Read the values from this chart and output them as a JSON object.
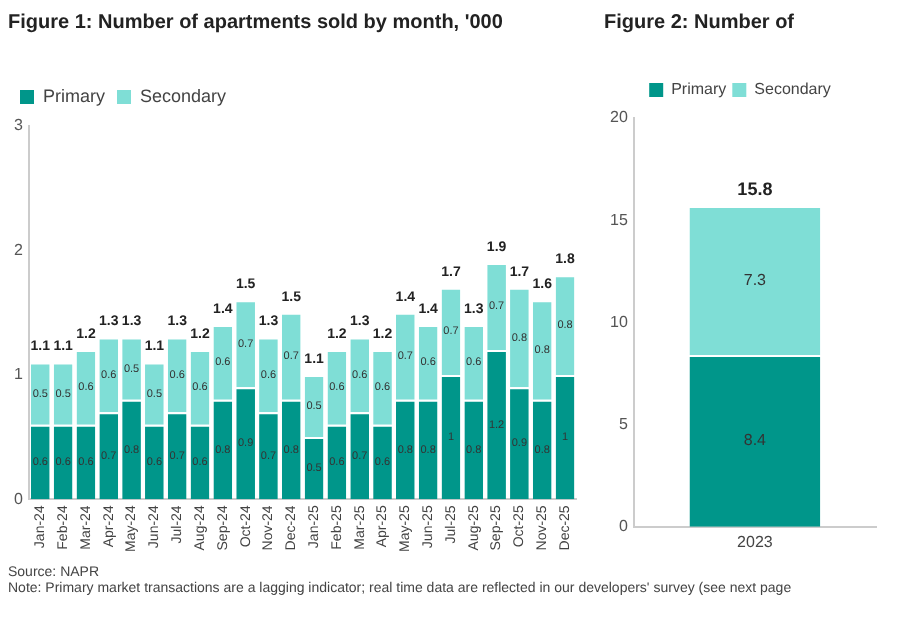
{
  "chart_data": [
    {
      "type": "bar",
      "title": "Figure 1: Number of apartments sold by month, '000",
      "categories": [
        "Jan-24",
        "Feb-24",
        "Mar-24",
        "Apr-24",
        "May-24",
        "Jun-24",
        "Jul-24",
        "Aug-24",
        "Sep-24",
        "Oct-24",
        "Nov-24",
        "Dec-24",
        "Jan-25",
        "Feb-25",
        "Mar-25",
        "Apr-25",
        "May-25",
        "Jun-25",
        "Jul-25",
        "Aug-25",
        "Sep-25",
        "Oct-25",
        "Nov-25",
        "Dec-25"
      ],
      "series": [
        {
          "name": "Primary",
          "color": "#00968a",
          "values": [
            0.6,
            0.6,
            0.6,
            0.7,
            0.8,
            0.6,
            0.7,
            0.6,
            0.8,
            0.9,
            0.7,
            0.8,
            0.5,
            0.6,
            0.7,
            0.6,
            0.8,
            0.8,
            1.0,
            0.8,
            1.2,
            0.9,
            0.8,
            1.0
          ]
        },
        {
          "name": "Secondary",
          "color": "#7fded6",
          "values": [
            0.5,
            0.5,
            0.6,
            0.6,
            0.5,
            0.5,
            0.6,
            0.6,
            0.6,
            0.7,
            0.6,
            0.7,
            0.5,
            0.6,
            0.6,
            0.6,
            0.7,
            0.6,
            0.7,
            0.6,
            0.7,
            0.8,
            0.8,
            0.8
          ]
        }
      ],
      "stacked": true,
      "data_labels": true,
      "totals": [
        "1.1",
        "1.1",
        "1.2",
        "1.3",
        "1.3",
        "1.1",
        "1.3",
        "1.2",
        "1.4",
        "1.5",
        "1.3",
        "1.5",
        "1.1",
        "1.2",
        "1.3",
        "1.2",
        "1.4",
        "1.4",
        "1.7",
        "1.3",
        "1.9",
        "1.7",
        "1.6",
        "1.8"
      ],
      "ylim": [
        0,
        3
      ],
      "yticks": [
        0,
        1,
        2,
        3
      ],
      "grid": false,
      "legend": "top left",
      "annotations": [
        "Source: NAPR",
        "Note: Primary market transactions are a lagging indicator; real time data are reflected in our developers' survey (see next page"
      ]
    },
    {
      "type": "bar",
      "title": "Figure 2: Number of",
      "categories": [
        "2023"
      ],
      "series": [
        {
          "name": "Primary",
          "color": "#00968a",
          "values": [
            8.4
          ]
        },
        {
          "name": "Secondary",
          "color": "#7fded6",
          "values": [
            7.3
          ]
        }
      ],
      "stacked": true,
      "data_labels": true,
      "totals": [
        "15.8"
      ],
      "ylim": [
        0,
        20
      ],
      "yticks": [
        0,
        5,
        10,
        15,
        20
      ],
      "grid": false,
      "legend": "top"
    }
  ]
}
